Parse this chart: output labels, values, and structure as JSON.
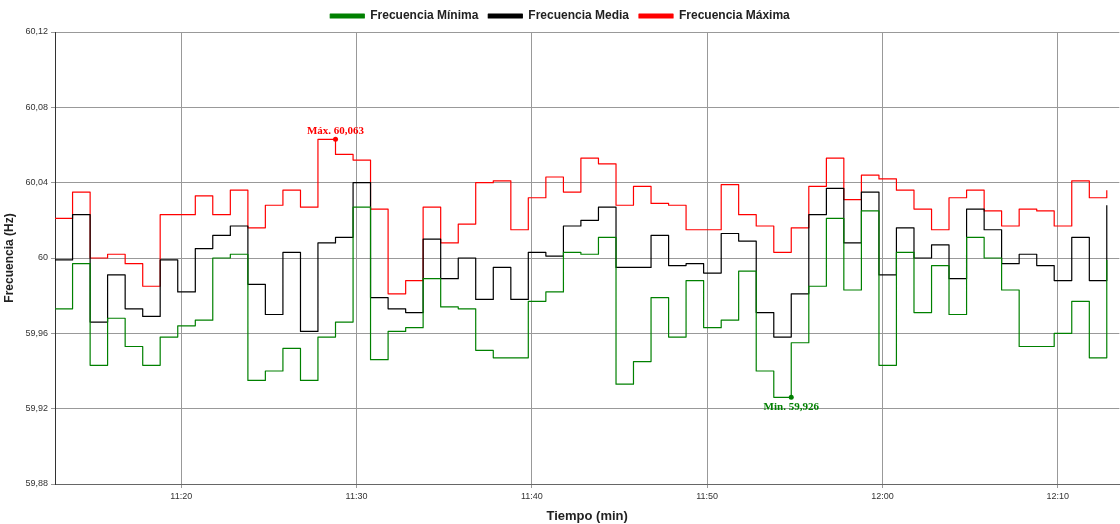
{
  "chart_data": {
    "type": "step",
    "xlabel": "Tiempo (min)",
    "ylabel": "Frecuencia (Hz)",
    "legend": "top",
    "grid": true,
    "line_style": "solid",
    "marker": "none",
    "xlim": [
      11.2133,
      12.2253
    ],
    "xticks": [
      {
        "value": 11.3333,
        "label": "11:20"
      },
      {
        "value": 11.5,
        "label": "11:30"
      },
      {
        "value": 11.6667,
        "label": "11:40"
      },
      {
        "value": 11.8333,
        "label": "11:50"
      },
      {
        "value": 12,
        "label": "12:00"
      },
      {
        "value": 12.1667,
        "label": "12:10"
      }
    ],
    "ylim": [
      59.88,
      60.12
    ],
    "yticks": [
      {
        "value": 59.88,
        "label": "59,88"
      },
      {
        "value": 59.92,
        "label": "59,92"
      },
      {
        "value": 59.96,
        "label": "59,96"
      },
      {
        "value": 60,
        "label": "60"
      },
      {
        "value": 60.04,
        "label": "60,04"
      },
      {
        "value": 60.08,
        "label": "60,08"
      },
      {
        "value": 60.12,
        "label": "60,12"
      }
    ],
    "x": [
      11.2133,
      11.23,
      11.2467,
      11.2633,
      11.28,
      11.2967,
      11.3133,
      11.33,
      11.3467,
      11.3633,
      11.38,
      11.3967,
      11.4133,
      11.43,
      11.4467,
      11.4633,
      11.48,
      11.4967,
      11.5133,
      11.53,
      11.5467,
      11.5633,
      11.58,
      11.5967,
      11.6133,
      11.63,
      11.6467,
      11.6633,
      11.68,
      11.6967,
      11.7133,
      11.73,
      11.7467,
      11.7633,
      11.78,
      11.7967,
      11.8133,
      11.83,
      11.8467,
      11.8633,
      11.88,
      11.8967,
      11.9133,
      11.93,
      11.9467,
      11.9633,
      11.98,
      11.9967,
      12.0133,
      12.03,
      12.0467,
      12.0633,
      12.08,
      12.0967,
      12.1133,
      12.13,
      12.1467,
      12.1633,
      12.18,
      12.1967,
      12.2133
    ],
    "series": [
      {
        "name": "Frecuencia Mínima",
        "color": "#008000",
        "values": [
          59.973,
          59.997,
          59.943,
          59.968,
          59.953,
          59.943,
          59.958,
          59.964,
          59.967,
          60.0,
          60.002,
          59.935,
          59.94,
          59.952,
          59.935,
          59.958,
          59.966,
          60.027,
          59.946,
          59.961,
          59.963,
          59.989,
          59.974,
          59.973,
          59.951,
          59.947,
          59.947,
          59.977,
          59.982,
          60.003,
          60.002,
          60.011,
          59.933,
          59.945,
          59.979,
          59.958,
          59.988,
          59.963,
          59.967,
          59.993,
          59.94,
          59.926,
          59.955,
          59.985,
          60.021,
          59.983,
          60.025,
          59.943,
          60.003,
          59.971,
          59.996,
          59.97,
          60.011,
          60.0,
          59.983,
          59.953,
          59.953,
          59.96,
          59.977,
          59.947,
          59.999
        ]
      },
      {
        "name": "Frecuencia Media",
        "color": "#000000",
        "values": [
          59.999,
          60.023,
          59.966,
          59.991,
          59.973,
          59.969,
          59.999,
          59.982,
          60.005,
          60.012,
          60.017,
          59.986,
          59.97,
          60.003,
          59.961,
          60.008,
          60.011,
          60.04,
          59.979,
          59.973,
          59.971,
          60.01,
          59.989,
          60.0,
          59.978,
          59.995,
          59.978,
          60.003,
          60.001,
          60.017,
          60.02,
          60.027,
          59.995,
          59.995,
          60.012,
          59.996,
          59.997,
          59.992,
          60.013,
          60.009,
          59.971,
          59.958,
          59.981,
          60.023,
          60.037,
          60.008,
          60.035,
          59.991,
          60.016,
          60.0,
          60.007,
          59.989,
          60.026,
          60.015,
          59.997,
          60.002,
          59.996,
          59.988,
          60.011,
          59.988,
          60.028
        ]
      },
      {
        "name": "Frecuencia Máxima",
        "color": "#ff0000",
        "values": [
          60.021,
          60.035,
          60.0,
          60.002,
          59.997,
          59.985,
          60.023,
          60.023,
          60.033,
          60.023,
          60.036,
          60.016,
          60.028,
          60.036,
          60.027,
          60.063,
          60.055,
          60.052,
          60.026,
          59.981,
          59.988,
          60.027,
          60.008,
          60.018,
          60.04,
          60.041,
          60.015,
          60.032,
          60.043,
          60.035,
          60.053,
          60.05,
          60.028,
          60.038,
          60.029,
          60.028,
          60.015,
          60.015,
          60.039,
          60.023,
          60.017,
          60.003,
          60.016,
          60.038,
          60.053,
          60.031,
          60.044,
          60.042,
          60.036,
          60.026,
          60.015,
          60.032,
          60.036,
          60.025,
          60.017,
          60.026,
          60.025,
          60.017,
          60.041,
          60.032,
          60.036
        ]
      }
    ],
    "annotations": [
      {
        "text": "Máx. 60,063",
        "x": 11.48,
        "y": 60.063
      },
      {
        "text": "Min. 59,926",
        "x": 11.9133,
        "y": 59.926
      }
    ]
  }
}
